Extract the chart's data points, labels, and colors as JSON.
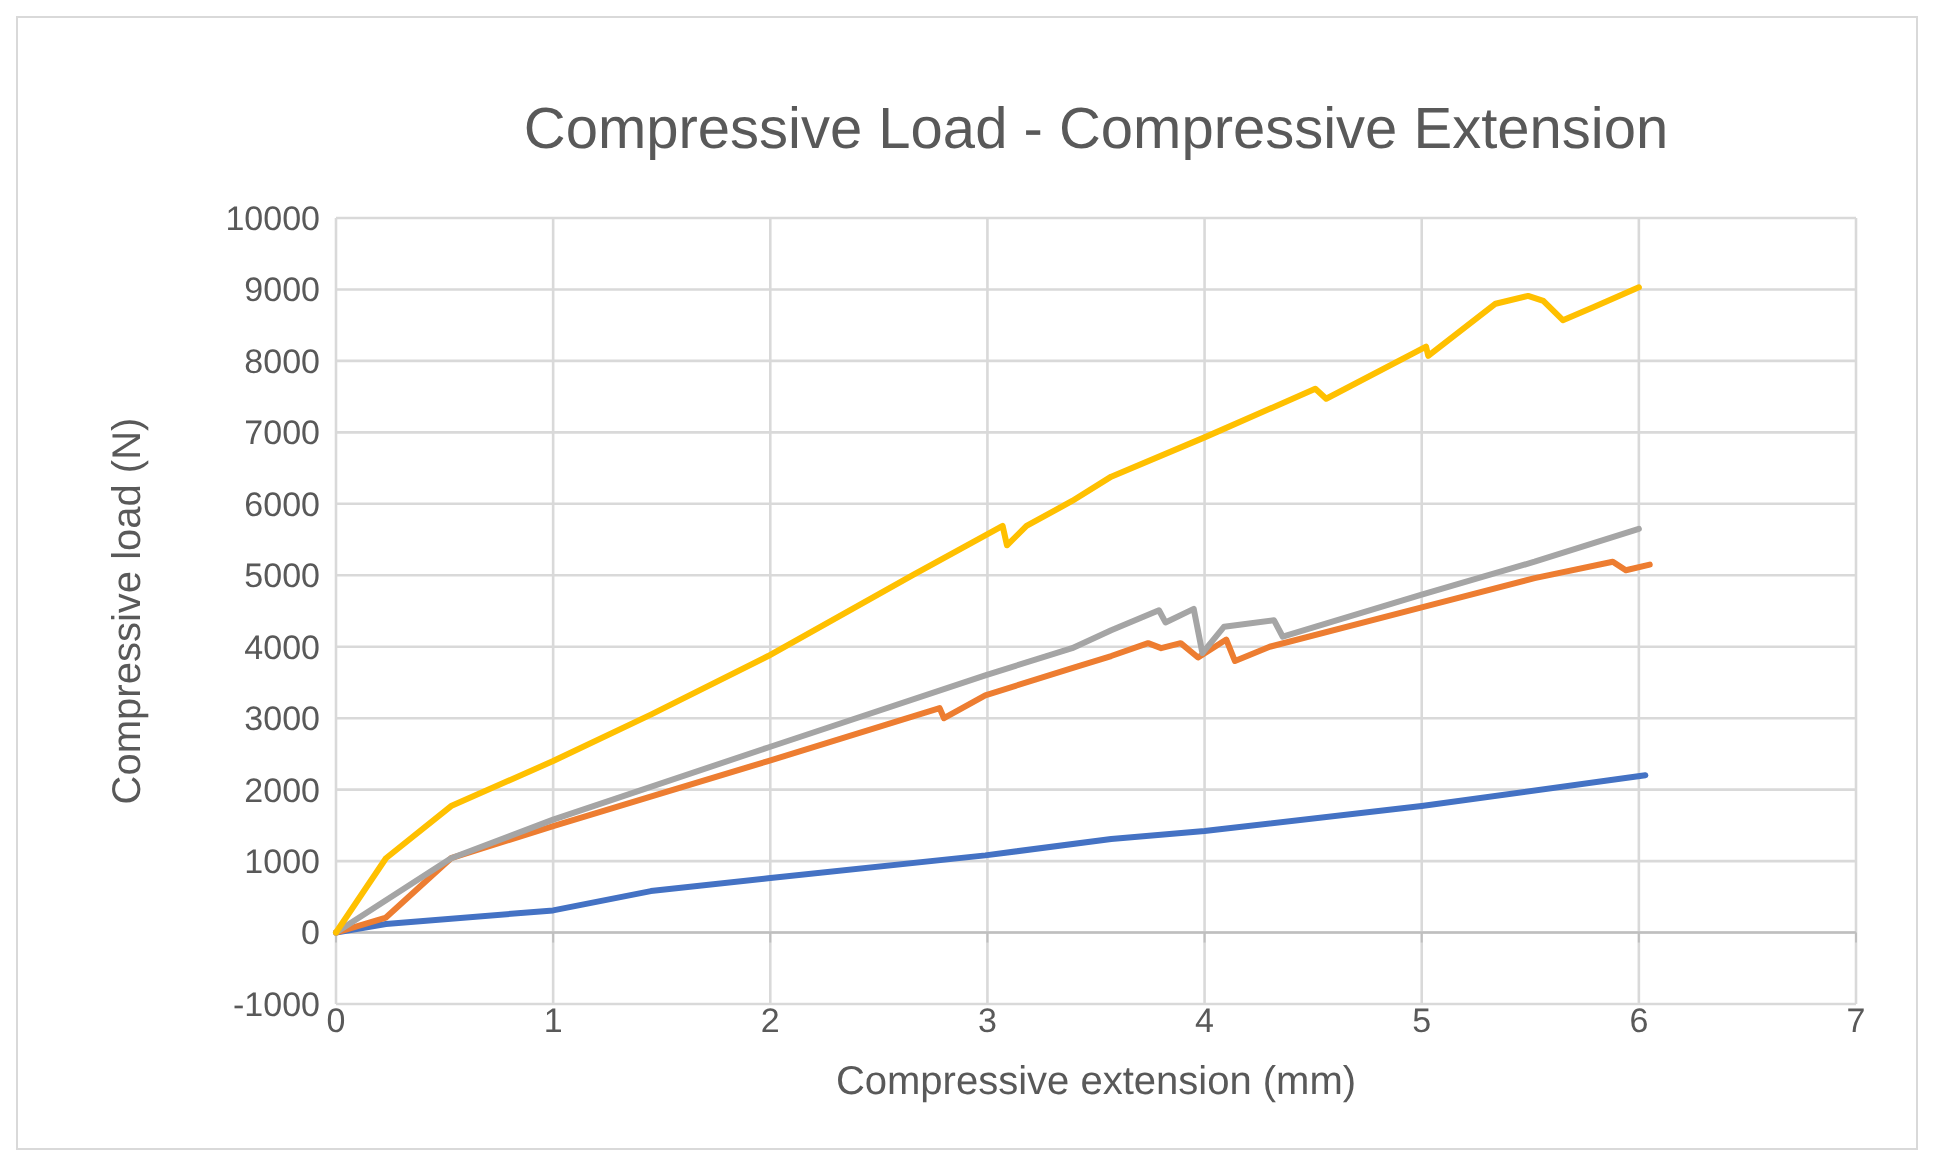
{
  "chart_data": {
    "type": "line",
    "title": "Compressive Load - Compressive Extension",
    "xlabel": "Compressive extension (mm)",
    "ylabel": "Compressive load (N)",
    "xlim": [
      0,
      7
    ],
    "xticks": [
      0,
      1,
      2,
      3,
      4,
      5,
      6,
      7
    ],
    "ylim": [
      -1000,
      10000
    ],
    "yticks": [
      -1000,
      0,
      1000,
      2000,
      3000,
      4000,
      5000,
      6000,
      7000,
      8000,
      9000,
      10000
    ],
    "grid": true,
    "marker": "none",
    "line_style": "solid",
    "series": [
      {
        "color": "#4472c4",
        "x": [
          0,
          0.23,
          1.0,
          1.45,
          1.99,
          2.99,
          3.57,
          4.0,
          5.0,
          6.03
        ],
        "values": [
          0,
          120,
          310,
          580,
          760,
          1080,
          1310,
          1420,
          1770,
          2200
        ]
      },
      {
        "color": "#ed7d31",
        "x": [
          0,
          0.23,
          0.53,
          1.0,
          1.99,
          2.78,
          2.8,
          2.99,
          3.39,
          3.57,
          3.74,
          3.8,
          3.89,
          3.97,
          4.1,
          4.14,
          4.3,
          5.0,
          5.52,
          5.88,
          5.94,
          6.05
        ],
        "values": [
          0,
          210,
          1040,
          1490,
          2400,
          3140,
          3000,
          3320,
          3700,
          3870,
          4050,
          3980,
          4050,
          3850,
          4100,
          3800,
          4000,
          4550,
          4960,
          5190,
          5070,
          5150
        ]
      },
      {
        "color": "#a5a5a5",
        "x": [
          0,
          0.53,
          1.0,
          1.99,
          2.99,
          3.39,
          3.57,
          3.79,
          3.82,
          3.95,
          3.99,
          4.09,
          4.32,
          4.36,
          5.0,
          5.52,
          6.0
        ],
        "values": [
          0,
          1040,
          1580,
          2590,
          3600,
          3980,
          4230,
          4510,
          4340,
          4530,
          3910,
          4280,
          4370,
          4140,
          4730,
          5190,
          5650
        ]
      },
      {
        "color": "#ffc000",
        "x": [
          0,
          0.23,
          0.53,
          1.0,
          1.45,
          1.99,
          2.66,
          3.07,
          3.09,
          3.18,
          3.39,
          3.57,
          4.0,
          4.51,
          4.56,
          5.02,
          5.03,
          5.34,
          5.49,
          5.56,
          5.65,
          5.79,
          6.0
        ],
        "values": [
          0,
          1040,
          1770,
          2400,
          3050,
          3870,
          5010,
          5690,
          5420,
          5690,
          6040,
          6380,
          6930,
          7610,
          7470,
          8200,
          8070,
          8800,
          8910,
          8840,
          8570,
          8750,
          9030
        ]
      }
    ]
  }
}
